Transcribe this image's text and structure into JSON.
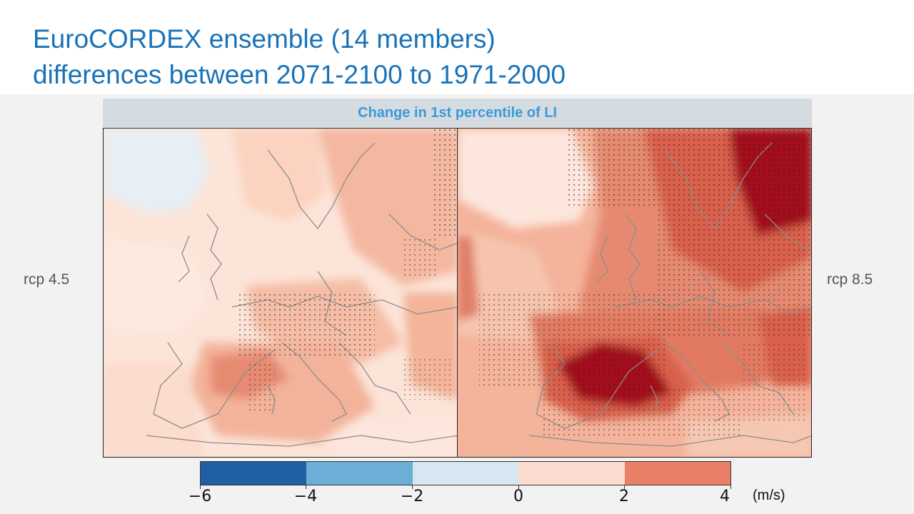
{
  "slide": {
    "title_line1": "EuroCORDEX ensemble (14 members)",
    "title_line2": "differences between 2071-2100 to 1971-2000",
    "title_color": "#1a73b8"
  },
  "figure": {
    "panel_title": "Change in 1st percentile of LI",
    "left_label": "rcp 4.5",
    "right_label": "rcp 8.5",
    "units": "(m/s)"
  },
  "colorbar": {
    "colors": [
      "#1f5fa3",
      "#6baed6",
      "#d6e7f1",
      "#fcdcd0",
      "#e97f66"
    ],
    "ticks": [
      "−6",
      "−4",
      "−2",
      "0",
      "2",
      "4"
    ],
    "range": [
      -6,
      4
    ],
    "high_color": "#a30f1e"
  }
}
